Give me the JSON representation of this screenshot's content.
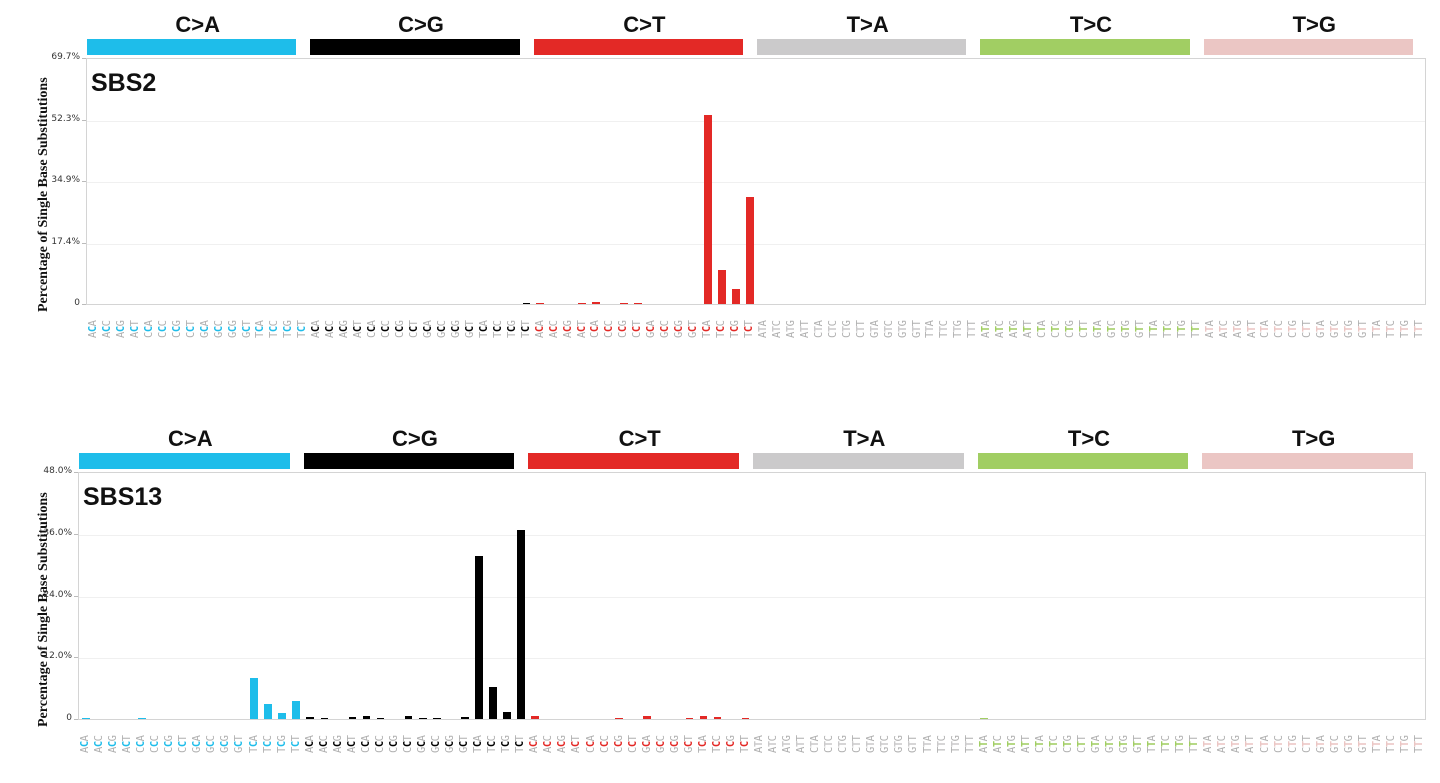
{
  "mutation_classes": [
    {
      "label": "C>A",
      "color": "#1ebdea"
    },
    {
      "label": "C>G",
      "color": "#000000"
    },
    {
      "label": "C>T",
      "color": "#e32926"
    },
    {
      "label": "T>A",
      "color": "#cbcacb"
    },
    {
      "label": "T>C",
      "color": "#a1ce63"
    },
    {
      "label": "T>G",
      "color": "#ebc6c4"
    }
  ],
  "ylabel": "Percentage of Single Base Substitutions",
  "chart_data": [
    {
      "type": "bar",
      "title": "SBS2",
      "ylabel": "Percentage of Single Base Substitutions",
      "yticks": [
        "0",
        "17.4%",
        "34.9%",
        "52.3%",
        "69.7%"
      ],
      "ylim": [
        0,
        69.7
      ],
      "grid": true,
      "categories_per_class": [
        "ACA",
        "ACC",
        "ACG",
        "ACT",
        "CCA",
        "CCC",
        "CCG",
        "CCT",
        "GCA",
        "GCC",
        "GCG",
        "GCT",
        "TCA",
        "TCC",
        "TCG",
        "TCT"
      ],
      "categories_per_class_T": [
        "ATA",
        "ATC",
        "ATG",
        "ATT",
        "CTA",
        "CTC",
        "CTG",
        "CTT",
        "GTA",
        "GTC",
        "GTG",
        "GTT",
        "TTA",
        "TTC",
        "TTG",
        "TTT"
      ],
      "series": [
        {
          "name": "C>A",
          "values": [
            0,
            0,
            0,
            0,
            0,
            0,
            0,
            0,
            0,
            0,
            0,
            0,
            0,
            0,
            0,
            0
          ]
        },
        {
          "name": "C>G",
          "values": [
            0,
            0,
            0,
            0,
            0,
            0,
            0,
            0,
            0,
            0,
            0,
            0,
            0,
            0,
            0,
            0.1
          ]
        },
        {
          "name": "C>T",
          "values": [
            0.1,
            0,
            0,
            0.2,
            0.5,
            0,
            0.2,
            0.1,
            0,
            0,
            0,
            0,
            53.5,
            9.6,
            4.3,
            30.2
          ]
        },
        {
          "name": "T>A",
          "values": [
            0,
            0,
            0,
            0,
            0,
            0,
            0,
            0,
            0,
            0,
            0,
            0,
            0,
            0,
            0,
            0
          ]
        },
        {
          "name": "T>C",
          "values": [
            0,
            0,
            0,
            0,
            0,
            0,
            0,
            0,
            0,
            0,
            0,
            0,
            0,
            0,
            0,
            0
          ]
        },
        {
          "name": "T>G",
          "values": [
            0,
            0,
            0,
            0,
            0,
            0,
            0,
            0,
            0,
            0,
            0,
            0,
            0,
            0,
            0,
            0
          ]
        }
      ]
    },
    {
      "type": "bar",
      "title": "SBS13",
      "ylabel": "Percentage of Single Base Substitutions",
      "yticks": [
        "0",
        "12.0%",
        "24.0%",
        "36.0%",
        "48.0%"
      ],
      "ylim": [
        0,
        48.0
      ],
      "grid": true,
      "categories_per_class": [
        "ACA",
        "ACC",
        "ACG",
        "ACT",
        "CCA",
        "CCC",
        "CCG",
        "CCT",
        "GCA",
        "GCC",
        "GCG",
        "GCT",
        "TCA",
        "TCC",
        "TCG",
        "TCT"
      ],
      "categories_per_class_T": [
        "ATA",
        "ATC",
        "ATG",
        "ATT",
        "CTA",
        "CTC",
        "CTG",
        "CTT",
        "GTA",
        "GTC",
        "GTG",
        "GTT",
        "TTA",
        "TTC",
        "TTG",
        "TTT"
      ],
      "series": [
        {
          "name": "C>A",
          "values": [
            0.1,
            0,
            0,
            0,
            0.1,
            0,
            0,
            0,
            0,
            0,
            0,
            0,
            8.0,
            2.9,
            1.2,
            3.5
          ]
        },
        {
          "name": "C>G",
          "values": [
            0.4,
            0.1,
            0,
            0.4,
            0.6,
            0.1,
            0,
            0.6,
            0.2,
            0.1,
            0,
            0.3,
            31.7,
            6.2,
            1.4,
            36.7
          ]
        },
        {
          "name": "C>T",
          "values": [
            0.6,
            0,
            0,
            0,
            0,
            0,
            0.2,
            0,
            0.6,
            0,
            0,
            0.2,
            0.6,
            0.4,
            0,
            0.1
          ]
        },
        {
          "name": "T>A",
          "values": [
            0,
            0,
            0,
            0,
            0,
            0,
            0,
            0,
            0,
            0,
            0,
            0,
            0,
            0,
            0,
            0
          ]
        },
        {
          "name": "T>C",
          "values": [
            0.1,
            0,
            0,
            0,
            0,
            0,
            0,
            0,
            0,
            0,
            0,
            0,
            0,
            0,
            0,
            0
          ]
        },
        {
          "name": "T>G",
          "values": [
            0,
            0,
            0,
            0,
            0,
            0,
            0,
            0,
            0,
            0,
            0,
            0,
            0,
            0,
            0,
            0
          ]
        }
      ]
    }
  ]
}
